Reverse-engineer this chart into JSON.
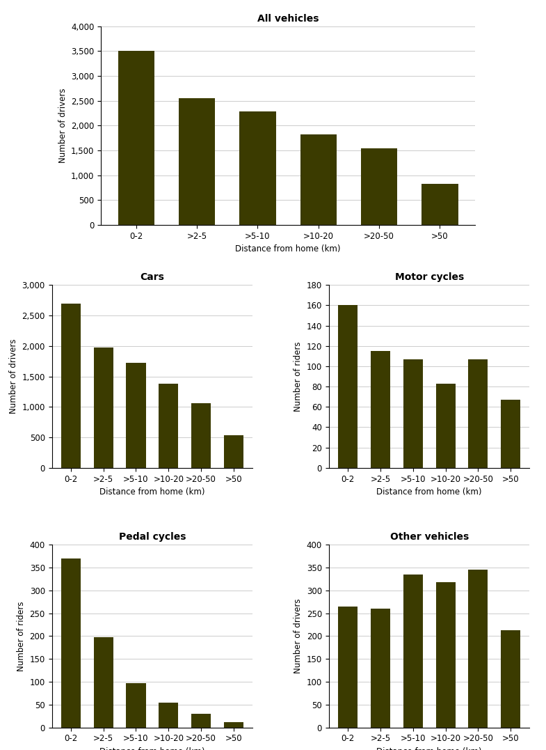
{
  "categories": [
    "0-2",
    ">2-5",
    ">5-10",
    ">10-20",
    ">20-50",
    ">50"
  ],
  "all_vehicles": [
    3500,
    2550,
    2280,
    1820,
    1550,
    830
  ],
  "cars": [
    2700,
    1970,
    1720,
    1380,
    1060,
    530
  ],
  "motor_cycles": [
    160,
    115,
    107,
    83,
    107,
    67
  ],
  "pedal_cycles": [
    370,
    197,
    97,
    55,
    30,
    12
  ],
  "other_vehicles": [
    265,
    260,
    335,
    318,
    345,
    213
  ],
  "bar_color": "#3b3b00",
  "titles": {
    "all_vehicles": "All vehicles",
    "cars": "Cars",
    "motor_cycles": "Motor cycles",
    "pedal_cycles": "Pedal cycles",
    "other_vehicles": "Other vehicles"
  },
  "ylabels": {
    "all_vehicles": "Number of drivers",
    "cars": "Number of drivers",
    "motor_cycles": "Number of riders",
    "pedal_cycles": "Number of riders",
    "other_vehicles": "Number of drivers"
  },
  "xlabel": "Distance from home (km)",
  "ylims": {
    "all_vehicles": [
      0,
      4000
    ],
    "cars": [
      0,
      3000
    ],
    "motor_cycles": [
      0,
      180
    ],
    "pedal_cycles": [
      0,
      400
    ],
    "other_vehicles": [
      0,
      400
    ]
  },
  "yticks": {
    "all_vehicles": [
      0,
      500,
      1000,
      1500,
      2000,
      2500,
      3000,
      3500,
      4000
    ],
    "cars": [
      0,
      500,
      1000,
      1500,
      2000,
      2500,
      3000
    ],
    "motor_cycles": [
      0,
      20,
      40,
      60,
      80,
      100,
      120,
      140,
      160,
      180
    ],
    "pedal_cycles": [
      0,
      50,
      100,
      150,
      200,
      250,
      300,
      350,
      400
    ],
    "other_vehicles": [
      0,
      50,
      100,
      150,
      200,
      250,
      300,
      350,
      400
    ]
  },
  "fig_width": 7.85,
  "fig_height": 10.77,
  "dpi": 100
}
